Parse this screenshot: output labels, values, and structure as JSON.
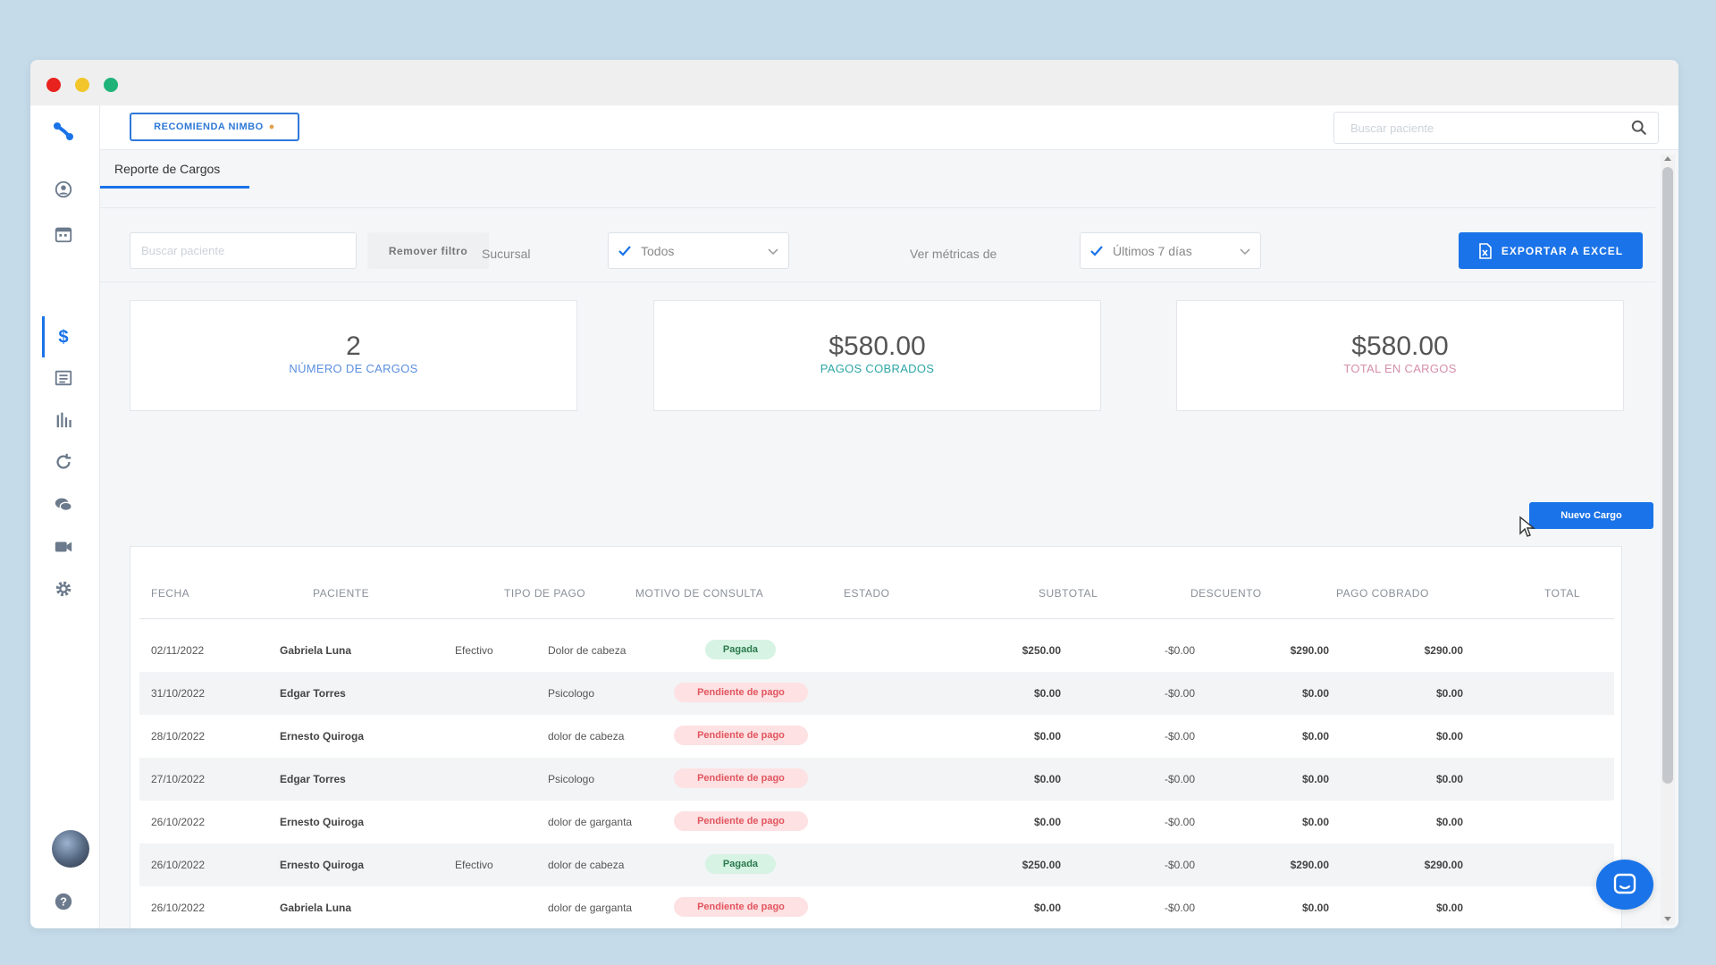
{
  "topbar": {
    "recomienda_label": "RECOMIENDA NIMBO",
    "search_placeholder": "Buscar paciente"
  },
  "tabs": [
    {
      "label": "Reporte de Cargos"
    }
  ],
  "filters": {
    "search_placeholder": "Buscar paciente",
    "remover_label": "Remover filtro",
    "sucursal_label": "Sucursal",
    "sucursal_value": "Todos",
    "metricas_label": "Ver métricas de",
    "metricas_value": "Últimos 7 días",
    "export_label": "EXPORTAR A EXCEL"
  },
  "cards": [
    {
      "value": "2",
      "label": "NÚMERO DE CARGOS",
      "color": "#5b8fe0"
    },
    {
      "value": "$580.00",
      "label": "PAGOS COBRADOS",
      "color": "#2fa6a6"
    },
    {
      "value": "$580.00",
      "label": "TOTAL EN CARGOS",
      "color": "#d58fab"
    }
  ],
  "nuevo_cargo_label": "Nuevo Cargo",
  "table": {
    "headers": [
      "FECHA",
      "PACIENTE",
      "TIPO DE PAGO",
      "MOTIVO DE CONSULTA",
      "ESTADO",
      "SUBTOTAL",
      "DESCUENTO",
      "PAGO COBRADO",
      "TOTAL"
    ],
    "rows": [
      {
        "fecha": "02/11/2022",
        "paciente": "Gabriela Luna",
        "tipo": "Efectivo",
        "motivo": "Dolor de cabeza",
        "estado": "Pagada",
        "subtotal": "$250.00",
        "descuento": "-$0.00",
        "cobrado": "$290.00",
        "total": "$290.00"
      },
      {
        "fecha": "31/10/2022",
        "paciente": "Edgar Torres",
        "tipo": "",
        "motivo": "Psicologo",
        "estado": "Pendiente de pago",
        "subtotal": "$0.00",
        "descuento": "-$0.00",
        "cobrado": "$0.00",
        "total": "$0.00"
      },
      {
        "fecha": "28/10/2022",
        "paciente": "Ernesto Quiroga",
        "tipo": "",
        "motivo": "dolor de cabeza",
        "estado": "Pendiente de pago",
        "subtotal": "$0.00",
        "descuento": "-$0.00",
        "cobrado": "$0.00",
        "total": "$0.00"
      },
      {
        "fecha": "27/10/2022",
        "paciente": "Edgar Torres",
        "tipo": "",
        "motivo": "Psicologo",
        "estado": "Pendiente de pago",
        "subtotal": "$0.00",
        "descuento": "-$0.00",
        "cobrado": "$0.00",
        "total": "$0.00"
      },
      {
        "fecha": "26/10/2022",
        "paciente": "Ernesto Quiroga",
        "tipo": "",
        "motivo": "dolor de garganta",
        "estado": "Pendiente de pago",
        "subtotal": "$0.00",
        "descuento": "-$0.00",
        "cobrado": "$0.00",
        "total": "$0.00"
      },
      {
        "fecha": "26/10/2022",
        "paciente": "Ernesto Quiroga",
        "tipo": "Efectivo",
        "motivo": "dolor de cabeza",
        "estado": "Pagada",
        "subtotal": "$250.00",
        "descuento": "-$0.00",
        "cobrado": "$290.00",
        "total": "$290.00"
      },
      {
        "fecha": "26/10/2022",
        "paciente": "Gabriela Luna",
        "tipo": "",
        "motivo": "dolor de garganta",
        "estado": "Pendiente de pago",
        "subtotal": "$0.00",
        "descuento": "-$0.00",
        "cobrado": "$0.00",
        "total": "$0.00"
      }
    ]
  },
  "sidebar": {
    "icons": [
      "logo-icon",
      "user-icon",
      "calendar-icon",
      "dollar-icon",
      "list-icon",
      "chart-icon",
      "refresh-icon",
      "chat-icon",
      "video-icon",
      "gear-icon",
      "help-icon",
      "power-icon"
    ]
  },
  "colors": {
    "accent": "#1a73e8",
    "paid": "#2c7a4e",
    "pending": "#e2555e"
  }
}
